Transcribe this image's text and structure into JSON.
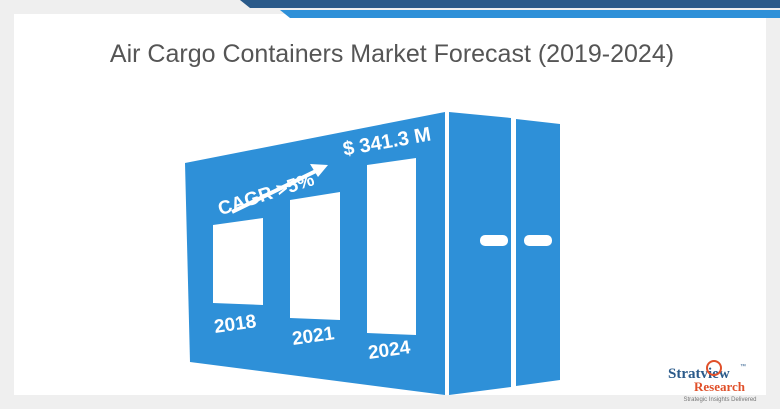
{
  "header": {
    "title": "Air Cargo Containers Market Forecast (2019-2024)"
  },
  "graphic": {
    "cagr": "CAGR >5%",
    "value": "$ 341.3 M",
    "years": [
      "2018",
      "2021",
      "2024"
    ]
  },
  "logo": {
    "name": "Stratview",
    "tm": "™",
    "sub": "Research",
    "tagline": "Strategic Insights Delivered"
  }
}
